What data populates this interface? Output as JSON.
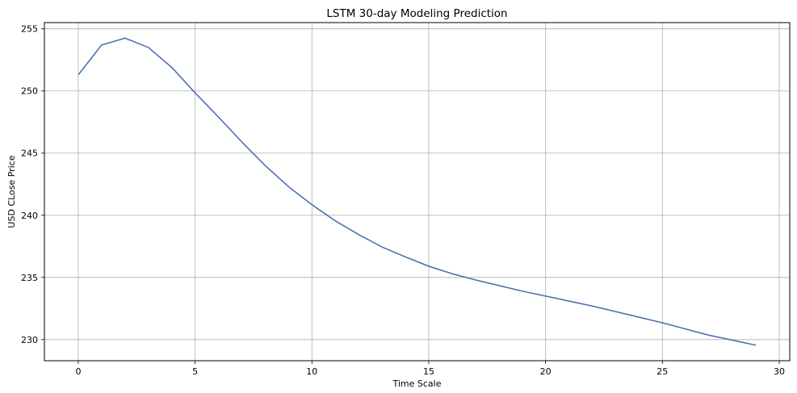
{
  "chart_data": {
    "type": "line",
    "title": "LSTM 30-day Modeling Prediction",
    "xlabel": "Time Scale",
    "ylabel": "USD CLose Price",
    "xlim": [
      -1.45,
      30.45
    ],
    "ylim": [
      228.3,
      255.5
    ],
    "xticks": [
      0,
      5,
      10,
      15,
      20,
      25,
      30
    ],
    "yticks": [
      230,
      235,
      240,
      245,
      250,
      255
    ],
    "grid": true,
    "line_color": "#4c72b0",
    "series": [
      {
        "x": [
          0,
          1,
          2,
          3,
          4,
          5,
          6,
          7,
          8,
          9,
          10,
          11,
          12,
          13,
          14,
          15,
          16,
          17,
          18,
          19,
          20,
          21,
          22,
          23,
          24,
          25,
          26,
          27,
          28,
          29
        ],
        "values": [
          251.3,
          253.7,
          254.25,
          253.5,
          251.9,
          249.85,
          247.9,
          245.9,
          244.0,
          242.3,
          240.85,
          239.55,
          238.45,
          237.45,
          236.65,
          235.9,
          235.3,
          234.8,
          234.35,
          233.9,
          233.5,
          233.1,
          232.7,
          232.25,
          231.8,
          231.35,
          230.85,
          230.35,
          229.95,
          229.55
        ]
      }
    ]
  }
}
